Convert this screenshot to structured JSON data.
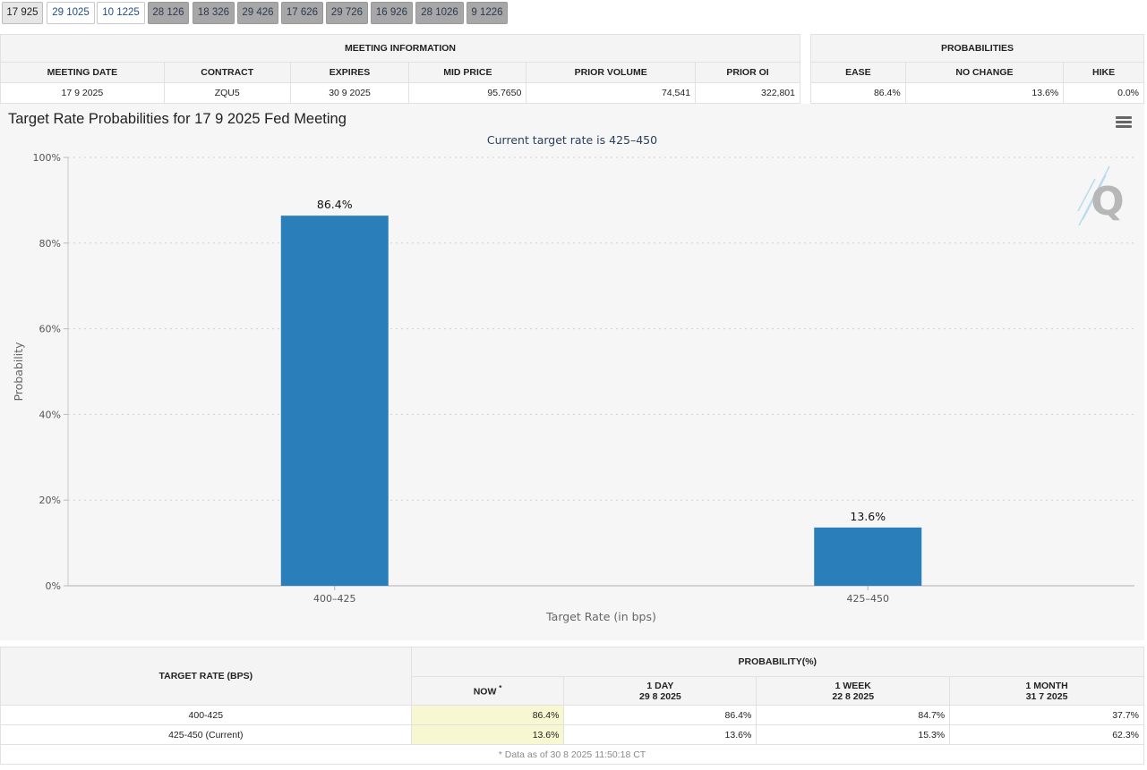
{
  "tabs": [
    {
      "label": "17 925",
      "state": "active"
    },
    {
      "label": "29 1025",
      "state": "normal"
    },
    {
      "label": "10 1225",
      "state": "normal"
    },
    {
      "label": "28 126",
      "state": "gray"
    },
    {
      "label": "18 326",
      "state": "gray"
    },
    {
      "label": "29 426",
      "state": "gray"
    },
    {
      "label": "17 626",
      "state": "gray"
    },
    {
      "label": "29 726",
      "state": "gray"
    },
    {
      "label": "16 926",
      "state": "gray"
    },
    {
      "label": "28 1026",
      "state": "gray"
    },
    {
      "label": "9 1226",
      "state": "gray"
    }
  ],
  "meeting_info": {
    "title": "MEETING INFORMATION",
    "headers": [
      "MEETING DATE",
      "CONTRACT",
      "EXPIRES",
      "MID PRICE",
      "PRIOR VOLUME",
      "PRIOR OI"
    ],
    "row": [
      "17 9 2025",
      "ZQU5",
      "30 9 2025",
      "95.7650",
      "74,541",
      "322,801"
    ]
  },
  "probabilities": {
    "title": "PROBABILITIES",
    "headers": [
      "EASE",
      "NO CHANGE",
      "HIKE"
    ],
    "row": [
      "86.4%",
      "13.6%",
      "0.0%"
    ]
  },
  "chart": {
    "title": "Target Rate Probabilities for 17 9 2025 Fed Meeting",
    "subtitle": "Current target rate is 425–450",
    "bar_color": "#2a7fba",
    "menu_icon": "hamburger-menu-icon",
    "watermark_icon": "q-logo-watermark-icon"
  },
  "chart_data": {
    "type": "bar",
    "categories": [
      "400–425",
      "425–450"
    ],
    "values": [
      86.4,
      13.6
    ],
    "data_labels": [
      "86.4%",
      "13.6%"
    ],
    "title": "Target Rate Probabilities for 17 9 2025 Fed Meeting",
    "subtitle": "Current target rate is 425–450",
    "xlabel": "Target Rate (in bps)",
    "ylabel": "Probability",
    "ylim": [
      0,
      100
    ],
    "yticks": [
      "0%",
      "20%",
      "40%",
      "60%",
      "80%",
      "100%"
    ],
    "grid": true,
    "legend": "none"
  },
  "history": {
    "target_rate_header": "TARGET RATE (BPS)",
    "probability_header": "PROBABILITY(%)",
    "now_label": "NOW",
    "now_marker": "*",
    "columns": [
      {
        "label": "1 DAY",
        "date": "29 8 2025"
      },
      {
        "label": "1 WEEK",
        "date": "22 8 2025"
      },
      {
        "label": "1 MONTH",
        "date": "31 7 2025"
      }
    ],
    "rows": [
      {
        "rate": "400-425",
        "now": "86.4%",
        "values": [
          "86.4%",
          "84.7%",
          "37.7%"
        ]
      },
      {
        "rate": "425-450 (Current)",
        "now": "13.6%",
        "values": [
          "13.6%",
          "15.3%",
          "62.3%"
        ]
      }
    ],
    "footnote": "* Data as of 30 8 2025 11:50:18 CT",
    "highlight_color": "#f7f7d2"
  }
}
